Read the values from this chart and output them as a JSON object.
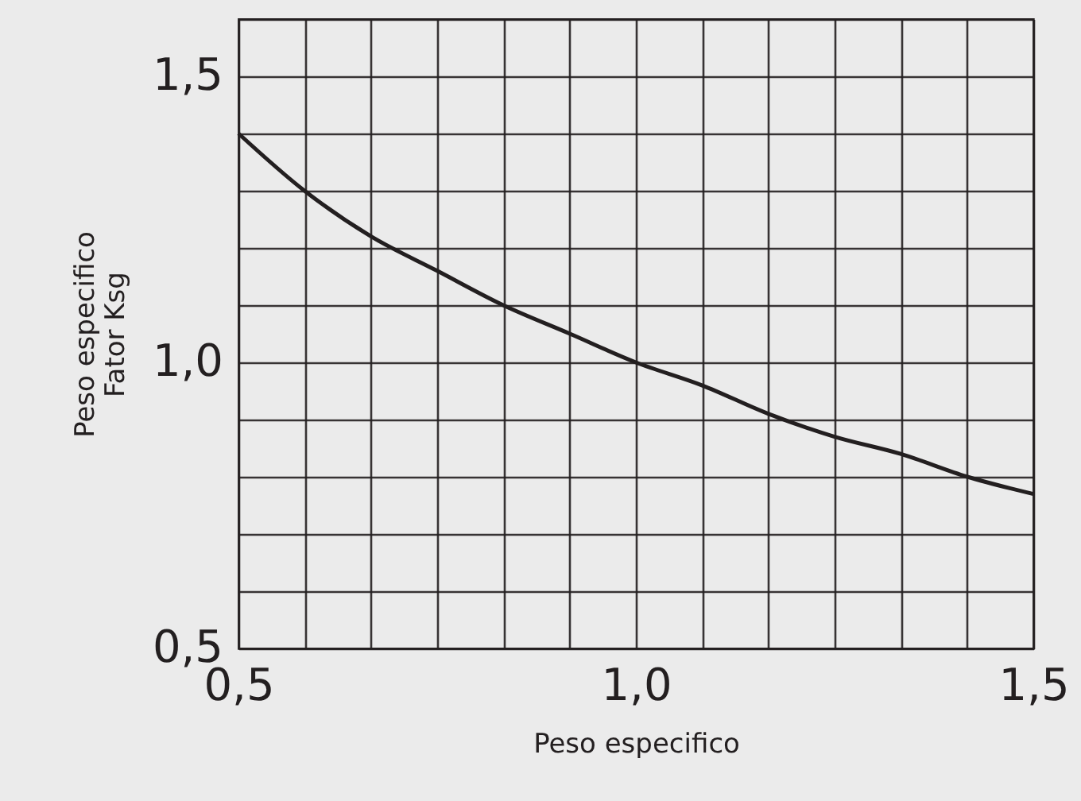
{
  "chart_data": {
    "type": "line",
    "xlabel": "Peso especifico",
    "ylabel": "Peso especifico\nFator Ksg",
    "x": [
      0.5,
      0.583,
      0.667,
      0.75,
      0.833,
      0.917,
      1.0,
      1.083,
      1.167,
      1.25,
      1.333,
      1.417,
      1.5
    ],
    "series": [
      {
        "color": "#231f20",
        "values": [
          1.4,
          1.3,
          1.22,
          1.16,
          1.1,
          1.05,
          1.0,
          0.96,
          0.91,
          0.87,
          0.84,
          0.8,
          0.77
        ]
      }
    ],
    "xlim": [
      0.5,
      1.5
    ],
    "ylim": [
      0.5,
      1.6
    ],
    "xticks": [
      {
        "value": 0.5,
        "label": "0,5"
      },
      {
        "value": 0.5833,
        "label": null
      },
      {
        "value": 0.6667,
        "label": null
      },
      {
        "value": 0.75,
        "label": null
      },
      {
        "value": 0.8333,
        "label": null
      },
      {
        "value": 0.9167,
        "label": null
      },
      {
        "value": 1.0,
        "label": "1,0"
      },
      {
        "value": 1.0833,
        "label": null
      },
      {
        "value": 1.1667,
        "label": null
      },
      {
        "value": 1.25,
        "label": null
      },
      {
        "value": 1.3333,
        "label": null
      },
      {
        "value": 1.4167,
        "label": null
      },
      {
        "value": 1.5,
        "label": "1,5"
      }
    ],
    "yticks": [
      {
        "value": 0.5,
        "label": "0,5"
      },
      {
        "value": 0.6,
        "label": null
      },
      {
        "value": 0.7,
        "label": null
      },
      {
        "value": 0.8,
        "label": null
      },
      {
        "value": 0.9,
        "label": null
      },
      {
        "value": 1.0,
        "label": "1,0"
      },
      {
        "value": 1.1,
        "label": null
      },
      {
        "value": 1.2,
        "label": null
      },
      {
        "value": 1.3,
        "label": null
      },
      {
        "value": 1.4,
        "label": null
      },
      {
        "value": 1.5,
        "label": "1,5"
      },
      {
        "value": 1.6,
        "label": null
      }
    ],
    "grid": true,
    "marker": "none",
    "line_style": "solid"
  }
}
